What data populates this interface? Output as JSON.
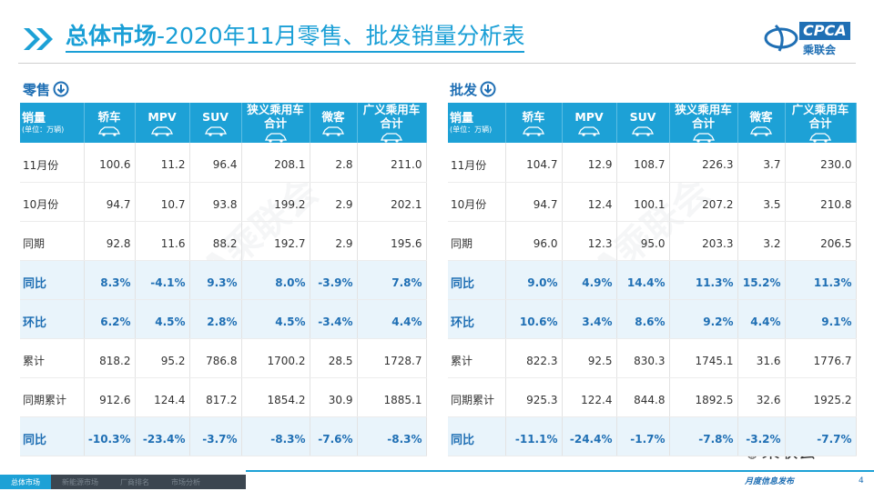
{
  "header": {
    "title_main": "总体市场",
    "title_rest": "-2020年11月零售、批发销量分析表",
    "logo": "CPCA",
    "logo_sub": "乘联会"
  },
  "watermark": "CPCA乘联会",
  "tables": [
    {
      "label": "零售",
      "corner": "销量",
      "unit": "(单位：万辆)",
      "columns": [
        "轿车",
        "MPV",
        "SUV",
        "狭义乘用车合计",
        "微客",
        "广义乘用车合计"
      ],
      "rows": [
        {
          "label": "11月份",
          "highlight": false,
          "cells": [
            "100.6",
            "11.2",
            "96.4",
            "208.1",
            "2.8",
            "211.0"
          ]
        },
        {
          "label": "10月份",
          "highlight": false,
          "cells": [
            "94.7",
            "10.7",
            "93.8",
            "199.2",
            "2.9",
            "202.1"
          ]
        },
        {
          "label": "同期",
          "highlight": false,
          "cells": [
            "92.8",
            "11.6",
            "88.2",
            "192.7",
            "2.9",
            "195.6"
          ]
        },
        {
          "label": "同比",
          "highlight": true,
          "cells": [
            "8.3%",
            "-4.1%",
            "9.3%",
            "8.0%",
            "-3.9%",
            "7.8%"
          ]
        },
        {
          "label": "环比",
          "highlight": true,
          "cells": [
            "6.2%",
            "4.5%",
            "2.8%",
            "4.5%",
            "-3.4%",
            "4.4%"
          ]
        },
        {
          "label": "累计",
          "highlight": false,
          "cells": [
            "818.2",
            "95.2",
            "786.8",
            "1700.2",
            "28.5",
            "1728.7"
          ]
        },
        {
          "label": "同期累计",
          "highlight": false,
          "cells": [
            "912.6",
            "124.4",
            "817.2",
            "1854.2",
            "30.9",
            "1885.1"
          ]
        },
        {
          "label": "同比",
          "highlight": true,
          "cells": [
            "-10.3%",
            "-23.4%",
            "-3.7%",
            "-8.3%",
            "-7.6%",
            "-8.3%"
          ]
        }
      ]
    },
    {
      "label": "批发",
      "corner": "销量",
      "unit": "(单位：万辆)",
      "columns": [
        "轿车",
        "MPV",
        "SUV",
        "狭义乘用车合计",
        "微客",
        "广义乘用车合计"
      ],
      "rows": [
        {
          "label": "11月份",
          "highlight": false,
          "cells": [
            "104.7",
            "12.9",
            "108.7",
            "226.3",
            "3.7",
            "230.0"
          ]
        },
        {
          "label": "10月份",
          "highlight": false,
          "cells": [
            "94.7",
            "12.4",
            "100.1",
            "207.2",
            "3.5",
            "210.8"
          ]
        },
        {
          "label": "同期",
          "highlight": false,
          "cells": [
            "96.0",
            "12.3",
            "95.0",
            "203.3",
            "3.2",
            "206.5"
          ]
        },
        {
          "label": "同比",
          "highlight": true,
          "cells": [
            "9.0%",
            "4.9%",
            "14.4%",
            "11.3%",
            "15.2%",
            "11.3%"
          ]
        },
        {
          "label": "环比",
          "highlight": true,
          "cells": [
            "10.6%",
            "3.4%",
            "8.6%",
            "9.2%",
            "4.4%",
            "9.1%"
          ]
        },
        {
          "label": "累计",
          "highlight": false,
          "cells": [
            "822.3",
            "92.5",
            "830.3",
            "1745.1",
            "31.6",
            "1776.7"
          ]
        },
        {
          "label": "同期累计",
          "highlight": false,
          "cells": [
            "925.3",
            "122.4",
            "844.8",
            "1892.5",
            "32.6",
            "1925.2"
          ]
        },
        {
          "label": "同比",
          "highlight": true,
          "cells": [
            "-11.1%",
            "-24.4%",
            "-1.7%",
            "-7.8%",
            "-3.2%",
            "-7.7%"
          ]
        }
      ]
    }
  ],
  "footer": {
    "tabs": [
      "总体市场",
      "新能源市场",
      "厂商排名",
      "市场分析"
    ],
    "text": "月度信息发布",
    "page": "4",
    "badge": "乘联会"
  }
}
